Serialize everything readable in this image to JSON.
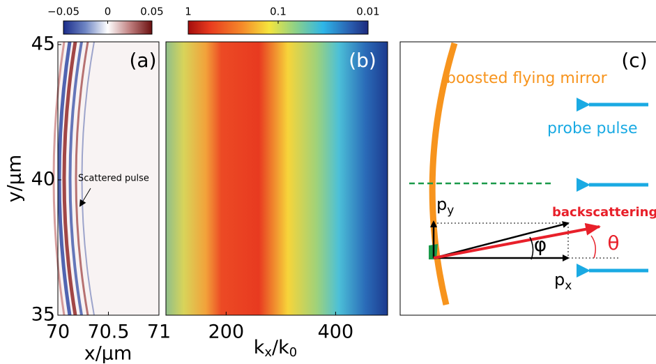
{
  "chart_data": [
    {
      "type": "heatmap",
      "label": "(a)",
      "annotation": "Scattered pulse",
      "xlabel": "x/μm",
      "ylabel": "y/μm",
      "xlim": [
        70,
        71
      ],
      "xticks": [
        70,
        70.5,
        71
      ],
      "ylim": [
        35,
        45.1
      ],
      "yticks": [
        35,
        40,
        45
      ],
      "colorbar": {
        "lim": [
          -0.05,
          0.05
        ],
        "ticks": [
          {
            "value": -0.05,
            "label": "−0.05"
          },
          0,
          0.05
        ],
        "log": false
      }
    },
    {
      "type": "heatmap",
      "label": "(b)",
      "xlabel": [
        "k",
        "x",
        "/k",
        "0"
      ],
      "xlim": [
        90,
        495
      ],
      "xticks": [
        200,
        400
      ],
      "colorbar": {
        "lim": [
          1,
          0.01
        ],
        "ticks": [
          1,
          0.1,
          0.01
        ],
        "log": true
      }
    },
    {
      "type": "diagram",
      "label": "(c)",
      "texts": {
        "mirror": "boosted flying mirror",
        "probe": "probe pulse",
        "backscattering": "backscattering",
        "py": [
          "p",
          "y"
        ],
        "px": [
          "p",
          "x"
        ],
        "phi": "φ",
        "theta": "θ"
      }
    }
  ]
}
